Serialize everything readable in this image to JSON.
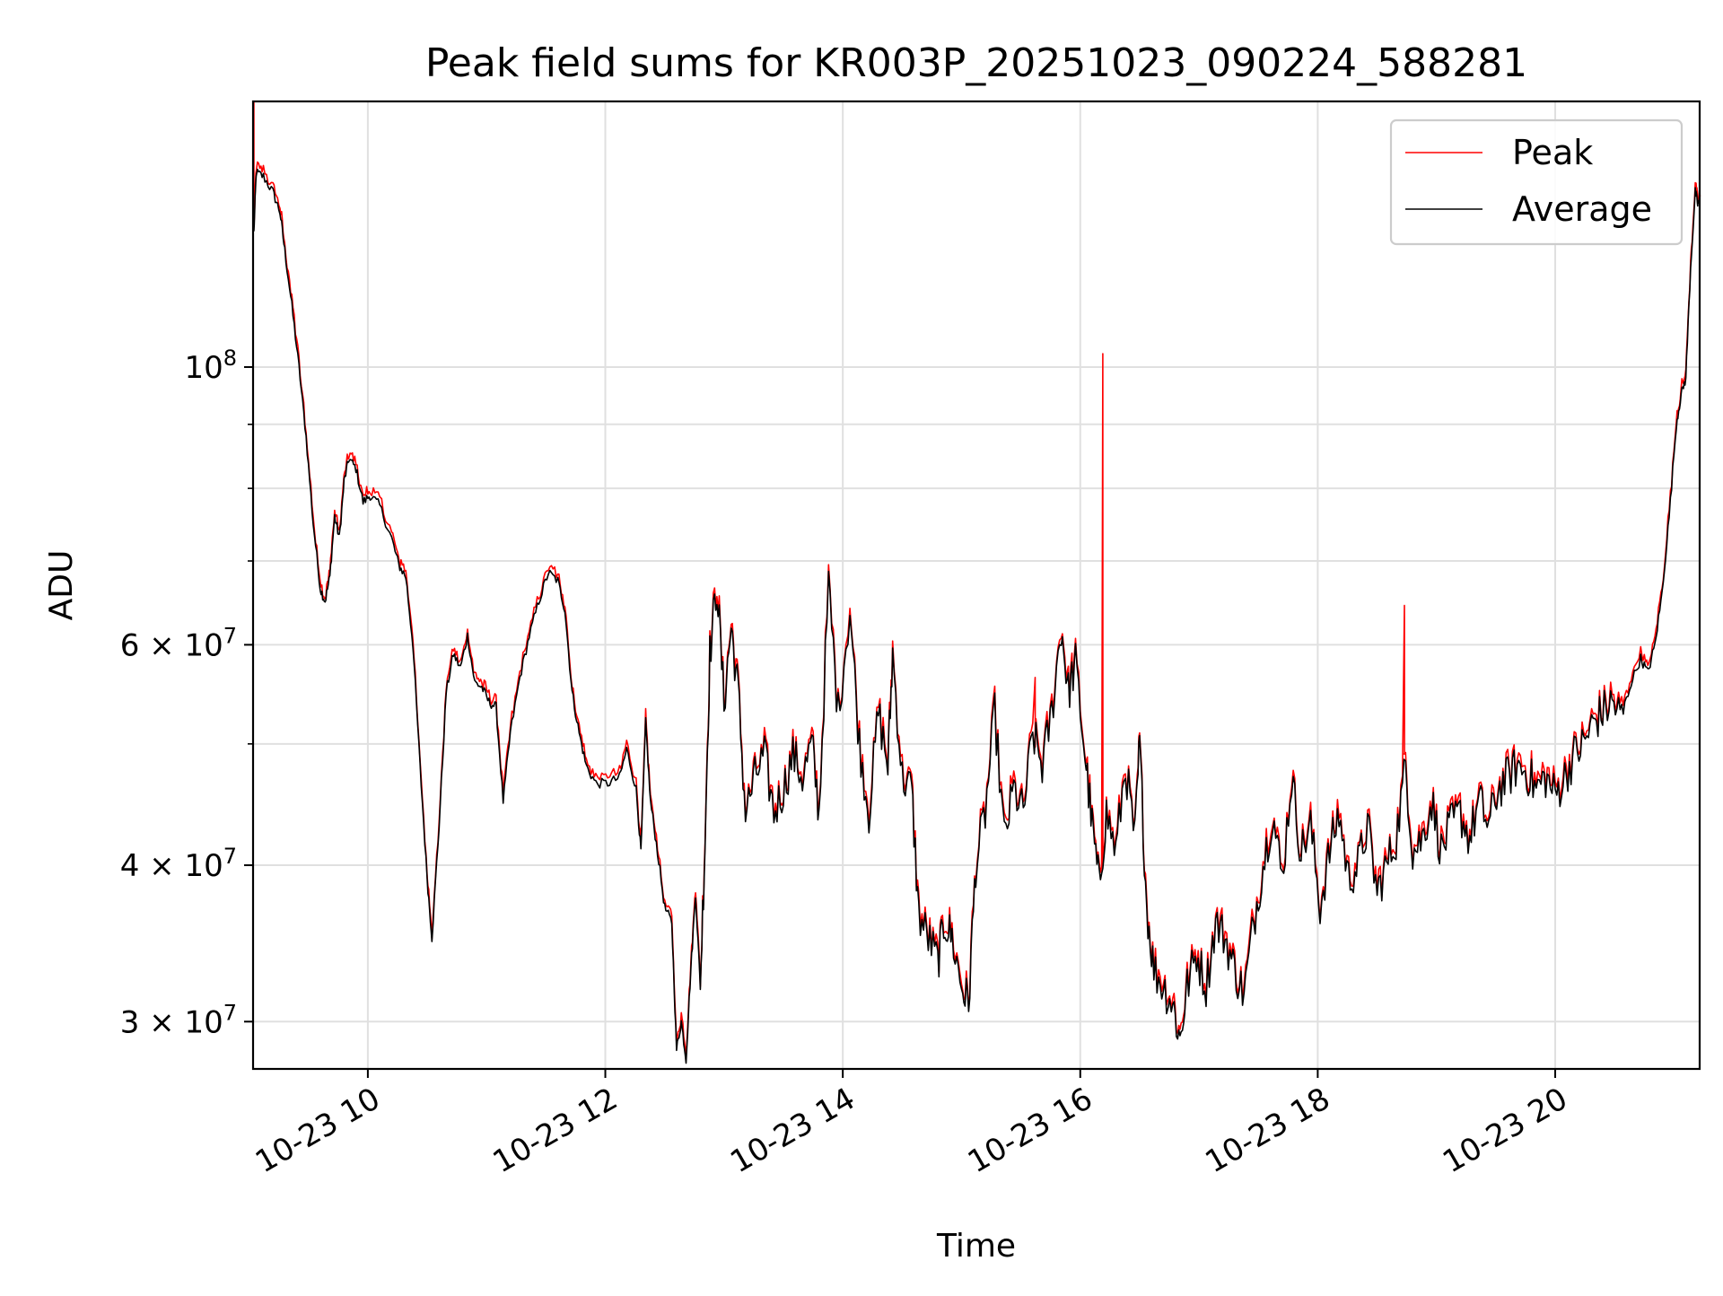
{
  "chart_data": {
    "type": "line",
    "title": "Peak field sums for KR003P_20251023_090224_588281",
    "xlabel": "Time",
    "ylabel": "ADU",
    "y_scale": "log",
    "ylim": [
      27500000,
      163000000
    ],
    "xlim": [
      "10-23 09:02",
      "10-23 21:13"
    ],
    "grid": true,
    "legend_position": "top-right",
    "x_tick_labels": [
      "10-23 10",
      "10-23 12",
      "10-23 14",
      "10-23 16",
      "10-23 18",
      "10-23 20"
    ],
    "x_ticks_hours": [
      10,
      12,
      14,
      16,
      18,
      20
    ],
    "y_major_ticks": [
      {
        "value": 30000000,
        "mantissa": "3",
        "exp": "7"
      },
      {
        "value": 40000000,
        "mantissa": "4",
        "exp": "7"
      },
      {
        "value": 60000000,
        "mantissa": "6",
        "exp": "7"
      },
      {
        "value": 100000000,
        "mantissa": "",
        "exp": "8"
      }
    ],
    "y_minor_ticks": [
      50000000,
      70000000,
      80000000,
      90000000
    ],
    "series": [
      {
        "name": "Peak",
        "color": "#ff0000",
        "spikes": [
          {
            "t": 9.04,
            "y": 163000000
          },
          {
            "t": 15.62,
            "y": 56500000
          },
          {
            "t": 16.19,
            "y": 102500000
          },
          {
            "t": 18.73,
            "y": 64500000
          }
        ]
      },
      {
        "name": "Average",
        "color": "#000000",
        "keypoints": [
          [
            9.04,
            128000000
          ],
          [
            9.06,
            143000000
          ],
          [
            9.12,
            142000000
          ],
          [
            9.2,
            138000000
          ],
          [
            9.26,
            133000000
          ],
          [
            9.3,
            124000000
          ],
          [
            9.36,
            112000000
          ],
          [
            9.42,
            100000000
          ],
          [
            9.48,
            88000000
          ],
          [
            9.54,
            75000000
          ],
          [
            9.6,
            66500000
          ],
          [
            9.64,
            65000000
          ],
          [
            9.68,
            68000000
          ],
          [
            9.72,
            76000000
          ],
          [
            9.76,
            73000000
          ],
          [
            9.8,
            81000000
          ],
          [
            9.84,
            84500000
          ],
          [
            9.9,
            83000000
          ],
          [
            9.96,
            78000000
          ],
          [
            10.02,
            79000000
          ],
          [
            10.1,
            77500000
          ],
          [
            10.2,
            73000000
          ],
          [
            10.26,
            69500000
          ],
          [
            10.32,
            68000000
          ],
          [
            10.38,
            60000000
          ],
          [
            10.44,
            48000000
          ],
          [
            10.5,
            39000000
          ],
          [
            10.54,
            35000000
          ],
          [
            10.6,
            43000000
          ],
          [
            10.66,
            55000000
          ],
          [
            10.72,
            59000000
          ],
          [
            10.78,
            57500000
          ],
          [
            10.84,
            61000000
          ],
          [
            10.9,
            56000000
          ],
          [
            10.96,
            55500000
          ],
          [
            11.02,
            54000000
          ],
          [
            11.08,
            53500000
          ],
          [
            11.14,
            45000000
          ],
          [
            11.2,
            51000000
          ],
          [
            11.28,
            56500000
          ],
          [
            11.36,
            61000000
          ],
          [
            11.44,
            65000000
          ],
          [
            11.52,
            68500000
          ],
          [
            11.6,
            67500000
          ],
          [
            11.66,
            64000000
          ],
          [
            11.72,
            55000000
          ],
          [
            11.78,
            51000000
          ],
          [
            11.84,
            48000000
          ],
          [
            11.92,
            46500000
          ],
          [
            12.02,
            46500000
          ],
          [
            12.12,
            47000000
          ],
          [
            12.18,
            49500000
          ],
          [
            12.26,
            46000000
          ],
          [
            12.3,
            41000000
          ],
          [
            12.34,
            52000000
          ],
          [
            12.38,
            45000000
          ],
          [
            12.44,
            41000000
          ],
          [
            12.5,
            37000000
          ],
          [
            12.56,
            36000000
          ],
          [
            12.6,
            28500000
          ],
          [
            12.64,
            30000000
          ],
          [
            12.68,
            28000000
          ],
          [
            12.72,
            33000000
          ],
          [
            12.76,
            38000000
          ],
          [
            12.8,
            32000000
          ],
          [
            12.84,
            42000000
          ],
          [
            12.88,
            59000000
          ],
          [
            12.94,
            67000000
          ],
          [
            13.0,
            54000000
          ],
          [
            13.06,
            62000000
          ],
          [
            13.12,
            55000000
          ],
          [
            13.18,
            44000000
          ],
          [
            13.26,
            47000000
          ],
          [
            13.34,
            49000000
          ],
          [
            13.42,
            44000000
          ],
          [
            13.5,
            46000000
          ],
          [
            13.58,
            49000000
          ],
          [
            13.66,
            47000000
          ],
          [
            13.74,
            50000000
          ],
          [
            13.8,
            44000000
          ],
          [
            13.88,
            67000000
          ],
          [
            13.96,
            53000000
          ],
          [
            14.06,
            64000000
          ],
          [
            14.14,
            50000000
          ],
          [
            14.22,
            44000000
          ],
          [
            14.3,
            53000000
          ],
          [
            14.38,
            48000000
          ],
          [
            14.42,
            59000000
          ],
          [
            14.5,
            47000000
          ],
          [
            14.58,
            46000000
          ],
          [
            14.64,
            36500000
          ],
          [
            14.72,
            35000000
          ],
          [
            14.8,
            33500000
          ],
          [
            14.86,
            36000000
          ],
          [
            14.92,
            35000000
          ],
          [
            15.0,
            32000000
          ],
          [
            15.06,
            31000000
          ],
          [
            15.12,
            40000000
          ],
          [
            15.2,
            44000000
          ],
          [
            15.28,
            53000000
          ],
          [
            15.36,
            42000000
          ],
          [
            15.44,
            46000000
          ],
          [
            15.52,
            44000000
          ],
          [
            15.6,
            51000000
          ],
          [
            15.68,
            48000000
          ],
          [
            15.76,
            53000000
          ],
          [
            15.84,
            62000000
          ],
          [
            15.9,
            55000000
          ],
          [
            15.96,
            58000000
          ],
          [
            16.04,
            49000000
          ],
          [
            16.1,
            43000000
          ],
          [
            16.16,
            38500000
          ],
          [
            16.22,
            44000000
          ],
          [
            16.3,
            41000000
          ],
          [
            16.38,
            48000000
          ],
          [
            16.46,
            42000000
          ],
          [
            16.5,
            50000000
          ],
          [
            16.56,
            37000000
          ],
          [
            16.62,
            33000000
          ],
          [
            16.7,
            32000000
          ],
          [
            16.78,
            31000000
          ],
          [
            16.84,
            29000000
          ],
          [
            16.9,
            32000000
          ],
          [
            16.98,
            34000000
          ],
          [
            17.06,
            32000000
          ],
          [
            17.14,
            36000000
          ],
          [
            17.22,
            35000000
          ],
          [
            17.3,
            33000000
          ],
          [
            17.38,
            31500000
          ],
          [
            17.46,
            36000000
          ],
          [
            17.54,
            40000000
          ],
          [
            17.62,
            44000000
          ],
          [
            17.7,
            39000000
          ],
          [
            17.78,
            47000000
          ],
          [
            17.86,
            41000000
          ],
          [
            17.94,
            43000000
          ],
          [
            18.02,
            37000000
          ],
          [
            18.1,
            41000000
          ],
          [
            18.18,
            44000000
          ],
          [
            18.26,
            39000000
          ],
          [
            18.34,
            40000000
          ],
          [
            18.42,
            43000000
          ],
          [
            18.5,
            38000000
          ],
          [
            18.58,
            40000000
          ],
          [
            18.66,
            42000000
          ],
          [
            18.74,
            48000000
          ],
          [
            18.8,
            41000000
          ],
          [
            18.88,
            42000000
          ],
          [
            18.96,
            45000000
          ],
          [
            19.04,
            41000000
          ],
          [
            19.12,
            43000000
          ],
          [
            19.2,
            44000000
          ],
          [
            19.28,
            42000000
          ],
          [
            19.36,
            45000000
          ],
          [
            19.44,
            43000000
          ],
          [
            19.52,
            46000000
          ],
          [
            19.6,
            47000000
          ],
          [
            19.68,
            48000000
          ],
          [
            19.76,
            47500000
          ],
          [
            19.84,
            46000000
          ],
          [
            19.92,
            47000000
          ],
          [
            20.0,
            45500000
          ],
          [
            20.08,
            47000000
          ],
          [
            20.16,
            49000000
          ],
          [
            20.24,
            50000000
          ],
          [
            20.32,
            52000000
          ],
          [
            20.4,
            53000000
          ],
          [
            20.48,
            54000000
          ],
          [
            20.56,
            52500000
          ],
          [
            20.64,
            56000000
          ],
          [
            20.72,
            58500000
          ],
          [
            20.78,
            57000000
          ],
          [
            20.84,
            60000000
          ],
          [
            20.9,
            66000000
          ],
          [
            20.96,
            76000000
          ],
          [
            21.02,
            90000000
          ],
          [
            21.06,
            95000000
          ],
          [
            21.1,
            98000000
          ],
          [
            21.14,
            120000000
          ],
          [
            21.18,
            138000000
          ],
          [
            21.2,
            135000000
          ],
          [
            21.22,
            136000000
          ]
        ]
      }
    ]
  }
}
